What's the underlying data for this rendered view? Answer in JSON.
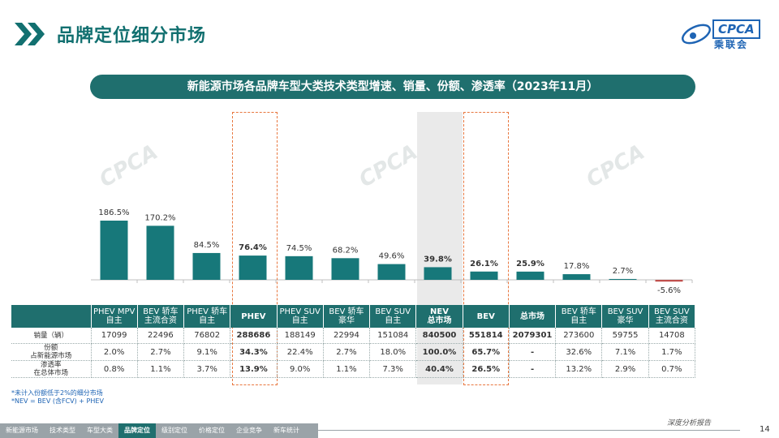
{
  "header": {
    "page_title": "品牌定位细分市场",
    "logo_text": "CPCA",
    "logo_sub": "乘联会"
  },
  "banner": "新能源市场各品牌车型大类技术类型增速、销量、份额、渗透率（2023年11月）",
  "watermark": "CPCA",
  "chart_data": {
    "type": "bar",
    "title": "新能源市场各品牌车型大类技术类型增速、销量、份额、渗透率（2023年11月）",
    "categories": [
      "PHEV MPV 自主",
      "BEV 轿车 主流合资",
      "PHEV 轿车 自主",
      "PHEV",
      "PHEV SUV 自主",
      "BEV 轿车 豪华",
      "BEV SUV 自主",
      "NEV 总市场",
      "BEV",
      "总市场",
      "BEV 轿车 自主",
      "BEV SUV 豪华",
      "BEV SUV 主流合资"
    ],
    "series": [
      {
        "values": [
          186.5,
          170.2,
          84.5,
          76.4,
          74.5,
          68.2,
          49.6,
          39.8,
          26.1,
          25.9,
          17.8,
          2.7,
          -5.6
        ]
      }
    ],
    "value_labels": [
      "186.5%",
      "170.2%",
      "84.5%",
      "76.4%",
      "74.5%",
      "68.2%",
      "49.6%",
      "39.8%",
      "26.1%",
      "25.9%",
      "17.8%",
      "2.7%",
      "-5.6%"
    ],
    "bold_indices": [
      3,
      7,
      8,
      9
    ],
    "ylim": [
      -10,
      200
    ],
    "bar_color": "#17787a",
    "highlight_color": "#e8773f"
  },
  "table": {
    "headers": [
      [
        "",
        ""
      ],
      [
        "PHEV MPV",
        "自主"
      ],
      [
        "BEV 轿车",
        "主流合资"
      ],
      [
        "PHEV 轿车",
        "自主"
      ],
      [
        "PHEV",
        ""
      ],
      [
        "PHEV SUV",
        "自主"
      ],
      [
        "BEV 轿车",
        "豪华"
      ],
      [
        "BEV SUV",
        "自主"
      ],
      [
        "NEV",
        "总市场"
      ],
      [
        "BEV",
        ""
      ],
      [
        "总市场",
        ""
      ],
      [
        "BEV 轿车",
        "自主"
      ],
      [
        "BEV SUV",
        "豪华"
      ],
      [
        "BEV SUV",
        "主流合资"
      ]
    ],
    "rows": [
      {
        "label": [
          "销量（辆）",
          ""
        ],
        "cells": [
          "17099",
          "22496",
          "76802",
          "288686",
          "188149",
          "22994",
          "151084",
          "840500",
          "551814",
          "2079301",
          "273600",
          "59755",
          "14708"
        ]
      },
      {
        "label": [
          "份额",
          "占新能源市场"
        ],
        "cells": [
          "2.0%",
          "2.7%",
          "9.1%",
          "34.3%",
          "22.4%",
          "2.7%",
          "18.0%",
          "100.0%",
          "65.7%",
          "-",
          "32.6%",
          "7.1%",
          "1.7%"
        ]
      },
      {
        "label": [
          "渗透率",
          "在总体市场"
        ],
        "cells": [
          "0.8%",
          "1.1%",
          "3.7%",
          "13.9%",
          "9.0%",
          "1.1%",
          "7.3%",
          "40.4%",
          "26.5%",
          "-",
          "13.2%",
          "2.9%",
          "0.7%"
        ]
      }
    ]
  },
  "notes": [
    "*未计入份额低于2%的细分市场",
    "*NEV = BEV (含FCV) + PHEV"
  ],
  "nav": {
    "items": [
      "新能源市场",
      "技术类型",
      "车型大类",
      "品牌定位",
      "级别定位",
      "价格定位",
      "企业竞争",
      "新车统计"
    ],
    "active_index": 3
  },
  "footer": {
    "report": "深度分析报告",
    "page_number": "14"
  }
}
